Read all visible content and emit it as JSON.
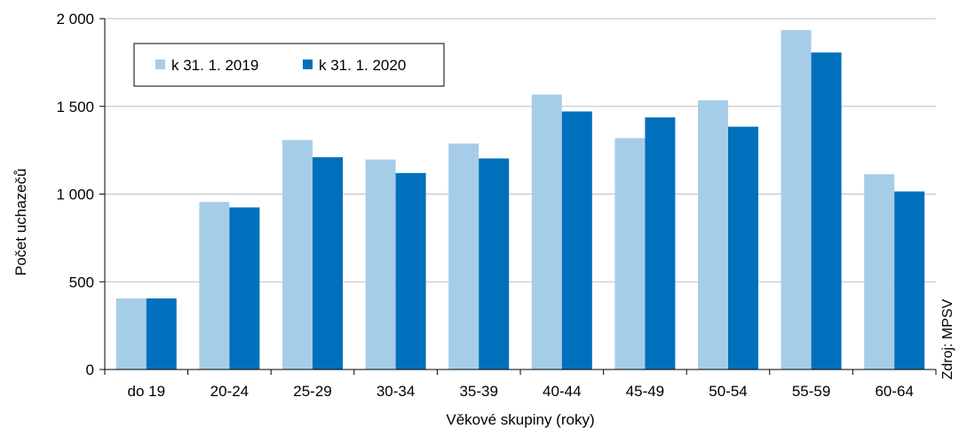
{
  "chart_data": {
    "type": "bar",
    "title": "",
    "xlabel": "Věkové skupiny (roky)",
    "ylabel": "Počet uchazečů",
    "ylim": [
      0,
      2000
    ],
    "yticks": [
      {
        "value": 0,
        "label": "0"
      },
      {
        "value": 500,
        "label": "500"
      },
      {
        "value": 1000,
        "label": "1 000"
      },
      {
        "value": 1500,
        "label": "1 500"
      },
      {
        "value": 2000,
        "label": "2 000"
      }
    ],
    "grid": true,
    "legend_position": "top-left",
    "categories": [
      "do 19",
      "20-24",
      "25-29",
      "30-34",
      "35-39",
      "40-44",
      "45-49",
      "50-54",
      "55-59",
      "60-64"
    ],
    "series": [
      {
        "name": "k 31. 1. 2019",
        "color": "#a6cde8",
        "values": [
          405,
          955,
          1308,
          1197,
          1288,
          1567,
          1319,
          1535,
          1935,
          1113
        ]
      },
      {
        "name": "k 31. 1. 2020",
        "color": "#0070bc",
        "values": [
          405,
          924,
          1210,
          1120,
          1203,
          1471,
          1437,
          1384,
          1807,
          1015
        ]
      }
    ],
    "source": "Zdroj: MPSV"
  }
}
